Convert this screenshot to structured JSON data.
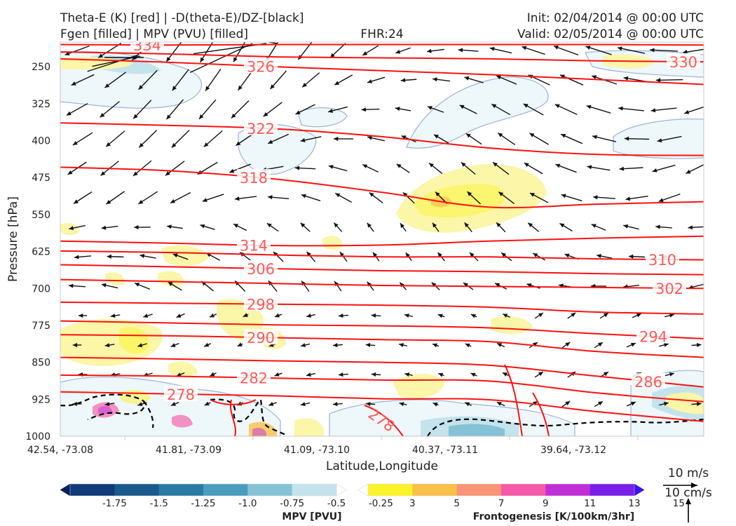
{
  "header": {
    "left_line1": "Theta-E (K) [red] | -D(theta-E)/DZ-[black]",
    "left_line2": "Fgen [filled] | MPV (PVU) [filled]",
    "center": "FHR:24",
    "right_line1": "Init: 02/04/2014 @ 00:00 UTC",
    "right_line2": "Valid: 02/05/2014 @ 00:00 UTC"
  },
  "chart_data": {
    "type": "cross-section",
    "xlabel": "Latitude,Longitude",
    "ylabel": "Pressure [hPa]",
    "x_ticks": [
      "42.54, -73.08",
      "41.81, -73.09",
      "41.09, -73.10",
      "40.37, -73.11",
      "39.64, -73.12"
    ],
    "y_ticks": [
      250,
      325,
      400,
      475,
      550,
      625,
      700,
      775,
      850,
      925,
      1000
    ],
    "ylim": [
      200,
      1000
    ],
    "y_inverted": true,
    "theta_e_contours": [
      {
        "label": "334",
        "pressures": [
          205,
          206,
          205,
          205,
          205,
          205,
          206
        ]
      },
      {
        "label": "330",
        "pressures": [
          220,
          224,
          230,
          232,
          234,
          238,
          240
        ]
      },
      {
        "label": "326",
        "pressures": [
          234,
          241,
          250,
          258,
          266,
          276,
          286
        ]
      },
      {
        "label": "322",
        "pressures": [
          364,
          369,
          376,
          392,
          415,
          428,
          430
        ]
      },
      {
        "label": "318",
        "pressures": [
          454,
          461,
          478,
          505,
          535,
          529,
          524
        ]
      },
      {
        "label": "314",
        "pressures": [
          604,
          608,
          613,
          612,
          604,
          598,
          594
        ]
      },
      {
        "label": "310",
        "pressures": [
          624,
          627,
          632,
          636,
          636,
          640,
          642
        ]
      },
      {
        "label": "306",
        "pressures": [
          652,
          656,
          660,
          664,
          666,
          670,
          672
        ]
      },
      {
        "label": "302",
        "pressures": [
          682,
          686,
          690,
          694,
          696,
          698,
          700
        ]
      },
      {
        "label": "298",
        "pressures": [
          728,
          730,
          732,
          734,
          738,
          748,
          752
        ]
      },
      {
        "label": "294",
        "pressures": [
          766,
          770,
          774,
          776,
          780,
          792,
          802
        ]
      },
      {
        "label": "290",
        "pressures": [
          794,
          796,
          800,
          804,
          808,
          828,
          840
        ]
      },
      {
        "label": "286",
        "pressures": [
          840,
          843,
          847,
          850,
          856,
          878,
          900
        ]
      },
      {
        "label": "282",
        "pressures": [
          876,
          878,
          882,
          886,
          888,
          912,
          930
        ]
      },
      {
        "label": "278",
        "pressures": [
          910,
          914,
          918,
          924,
          926,
          950,
          970
        ]
      }
    ],
    "colorbars": [
      {
        "label": "MPV [PVU]",
        "ticks": [
          "-1.75",
          "-1.5",
          "-1.25",
          "-1.0",
          "-0.75",
          "-0.5",
          "-0.25"
        ],
        "colors": [
          "#0a1f5c",
          "#103a78",
          "#1a5a8c",
          "#2a7ba3",
          "#4a9dbd",
          "#86c2d6",
          "#c4e3ec",
          "#ffffff"
        ]
      },
      {
        "label": "Frontogenesis [K/100km/3hr]",
        "ticks": [
          "3",
          "5",
          "7",
          "9",
          "11",
          "13",
          "15"
        ],
        "colors": [
          "#ffffff",
          "#fbf32a",
          "#f9c04a",
          "#f99477",
          "#f45aa8",
          "#c02fd6",
          "#7a1fe8",
          "#3a14f0"
        ]
      }
    ],
    "wind_legend": {
      "vertical_label": "10 m/s",
      "horizontal_label": "10 cm/s"
    }
  },
  "colors": {
    "theta_e": "#ff1111",
    "theta_e_label": "#ff5a5a",
    "mpv_contour": "#9cb4d6",
    "dtheta_dz": "#000000"
  }
}
